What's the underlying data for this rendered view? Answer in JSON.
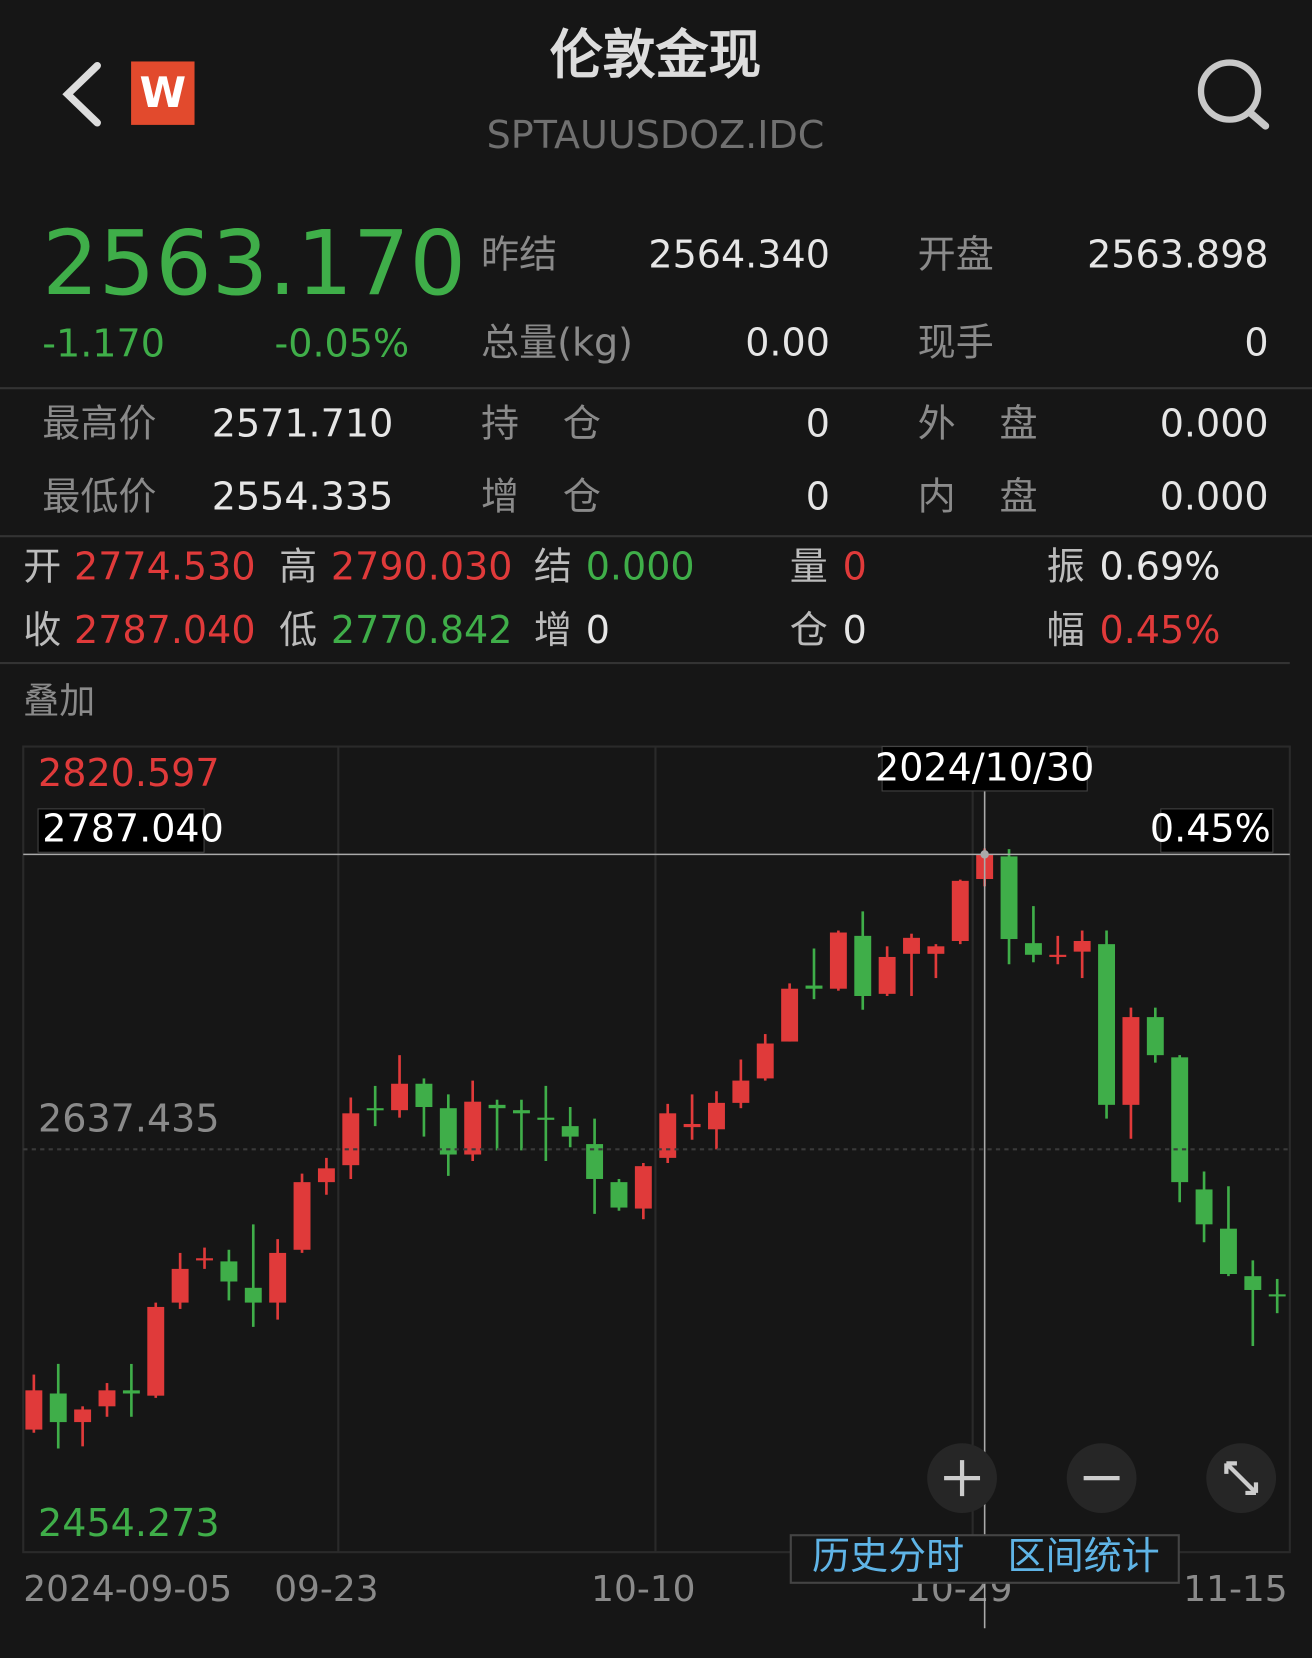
{
  "header": {
    "title": "伦敦金现",
    "code": "SPTAUUSDOZ.IDC",
    "badge": "W"
  },
  "quote": {
    "price": "2563.170",
    "change": "-1.170",
    "change_pct": "-0.05%",
    "fields": [
      [
        {
          "label": "昨结",
          "value": "2564.340"
        },
        {
          "label": "开盘",
          "value": "2563.898"
        }
      ],
      [
        {
          "label": "总量(kg)",
          "value": "0.00"
        },
        {
          "label": "现手",
          "value": "0"
        }
      ]
    ]
  },
  "stats": [
    [
      {
        "label": "最高价",
        "value": "2571.710"
      },
      {
        "label": "持 仓",
        "value": "0"
      },
      {
        "label": "外 盘",
        "value": "0.000"
      }
    ],
    [
      {
        "label": "最低价",
        "value": "2554.335"
      },
      {
        "label": "增 仓",
        "value": "0"
      },
      {
        "label": "内 盘",
        "value": "0.000"
      }
    ]
  ],
  "bar_info": [
    [
      {
        "label": "开",
        "value": "2774.530"
      },
      {
        "label": "高",
        "value": "2790.030"
      },
      {
        "label": "结",
        "value": "0.000"
      },
      {
        "label": "量",
        "value": "0"
      },
      {
        "label": "振",
        "value": "0.69%"
      }
    ],
    [
      {
        "label": "收",
        "value": "2787.040"
      },
      {
        "label": "低",
        "value": "2770.842"
      },
      {
        "label": "增",
        "value": "0"
      },
      {
        "label": "仓",
        "value": "0"
      },
      {
        "label": "幅",
        "value": "0.45%"
      }
    ]
  ],
  "overlay": "叠加",
  "buttons": [
    "历史分时",
    "区间统计"
  ],
  "chart_data": {
    "type": "candlestick",
    "categories": [
      "2024-09-05",
      null,
      null,
      null,
      null,
      null,
      null,
      null,
      null,
      null,
      null,
      null,
      "09-23",
      null,
      null,
      null,
      null,
      null,
      null,
      null,
      null,
      null,
      null,
      null,
      null,
      "10-10",
      null,
      null,
      null,
      null,
      null,
      null,
      null,
      null,
      null,
      null,
      null,
      null,
      "10-29",
      null,
      null,
      null,
      null,
      null,
      null,
      null,
      null,
      null,
      null,
      null,
      null,
      "11-15"
    ],
    "open": [
      2495.3,
      2513.6,
      2499.1,
      2507.1,
      2515.2,
      2512.5,
      2559.7,
      2581.1,
      2580.6,
      2567.2,
      2559.7,
      2586.5,
      2620.8,
      2629.4,
      2658.3,
      2657.3,
      2670.7,
      2658.3,
      2634.8,
      2660.0,
      2657.3,
      2653.5,
      2649.2,
      2640.1,
      2620.8,
      2607.4,
      2633.1,
      2648.7,
      2647.6,
      2661.0,
      2673.4,
      2692.1,
      2720.5,
      2718.9,
      2745.7,
      2716.3,
      2736.6,
      2736.6,
      2743.1,
      2774.53,
      2786.0,
      2742.0,
      2735.0,
      2737.7,
      2741.5,
      2660.0,
      2704.5,
      2684.1,
      2617.1,
      2597.2,
      2573.1,
      2563.898
    ],
    "high": [
      2523.2,
      2528.6,
      2507.1,
      2518.9,
      2528.6,
      2559.7,
      2584.9,
      2587.6,
      2586.5,
      2599.4,
      2591.9,
      2625.1,
      2633.1,
      2663.7,
      2669.6,
      2685.2,
      2673.4,
      2665.3,
      2672.3,
      2662.6,
      2662.6,
      2669.6,
      2658.9,
      2653.0,
      2622.4,
      2630.5,
      2660.5,
      2665.3,
      2666.9,
      2683.0,
      2695.9,
      2721.6,
      2739.3,
      2748.4,
      2758.1,
      2740.4,
      2746.8,
      2741.5,
      2774.2,
      2790.03,
      2789.7,
      2760.8,
      2745.7,
      2748.4,
      2748.4,
      2709.3,
      2709.3,
      2685.2,
      2626.2,
      2618.7,
      2581.1,
      2571.71
    ],
    "low": [
      2493.7,
      2485.7,
      2486.8,
      2501.8,
      2501.8,
      2511.4,
      2556.5,
      2576.8,
      2560.8,
      2547.4,
      2551.1,
      2584.9,
      2614.4,
      2622.4,
      2649.2,
      2653.5,
      2643.9,
      2624.0,
      2631.5,
      2636.9,
      2636.9,
      2631.5,
      2638.5,
      2604.7,
      2606.3,
      2602.0,
      2630.5,
      2642.3,
      2637.4,
      2658.3,
      2672.3,
      2692.1,
      2713.6,
      2717.9,
      2708.2,
      2715.2,
      2715.2,
      2724.3,
      2741.5,
      2770.842,
      2731.3,
      2732.3,
      2731.3,
      2724.3,
      2653.0,
      2642.8,
      2681.4,
      2610.6,
      2590.3,
      2573.1,
      2537.7,
      2554.335
    ],
    "close": [
      2515.2,
      2499.1,
      2505.5,
      2515.2,
      2513.6,
      2557.5,
      2576.8,
      2582.2,
      2570.4,
      2559.7,
      2584.9,
      2620.8,
      2627.8,
      2655.7,
      2657.3,
      2670.7,
      2658.9,
      2634.8,
      2661.6,
      2658.3,
      2655.7,
      2652.4,
      2643.9,
      2622.4,
      2607.9,
      2628.9,
      2655.7,
      2650.3,
      2661.0,
      2672.3,
      2691.1,
      2718.9,
      2718.9,
      2747.4,
      2715.2,
      2735.0,
      2744.7,
      2740.4,
      2773.6,
      2787.04,
      2744.1,
      2736.1,
      2736.1,
      2743.1,
      2660.0,
      2704.5,
      2685.2,
      2620.8,
      2599.4,
      2574.2,
      2566.1,
      2563.17
    ],
    "up_color": "#e03a3a",
    "down_color": "#3fae49",
    "ylim": [
      2454.273,
      2820.597
    ],
    "yticks": [
      2454.273,
      2637.435,
      2820.597
    ],
    "crosshair": {
      "label": "2024/10/30",
      "value": {
        "value": 2787.04,
        "label": "2787.040"
      },
      "change": "0.45%"
    }
  }
}
